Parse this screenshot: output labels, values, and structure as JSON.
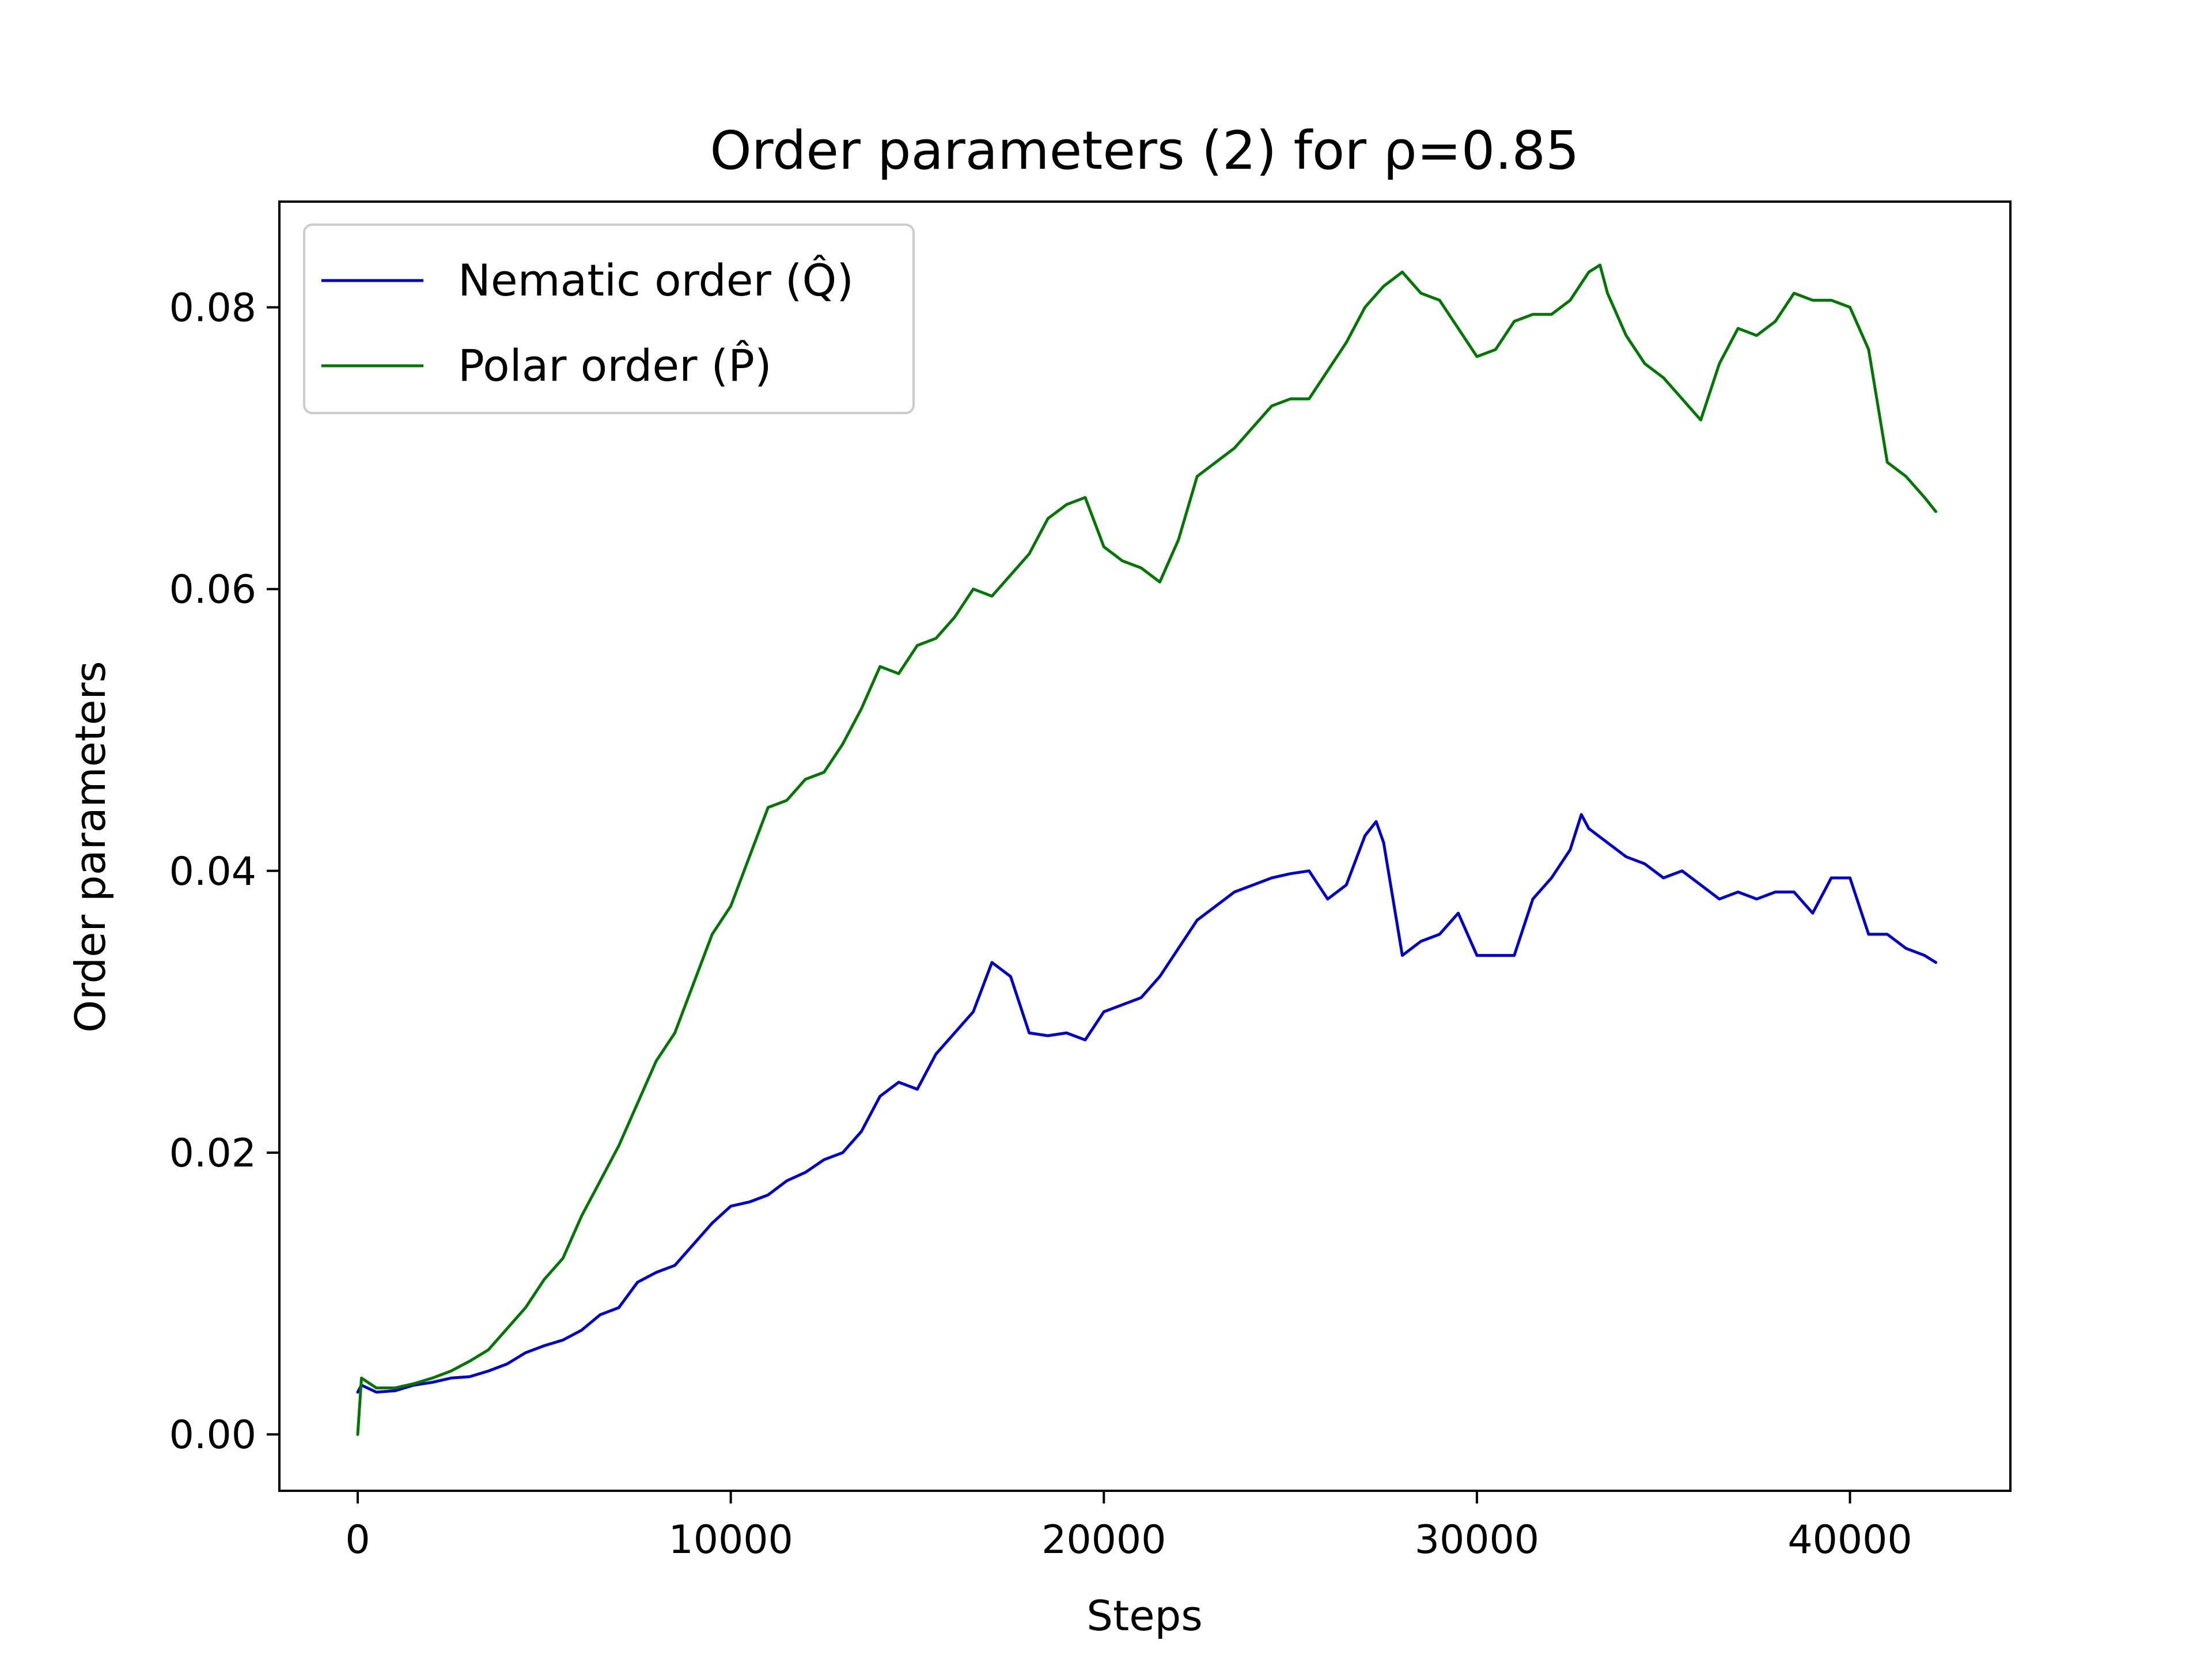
{
  "chart_data": {
    "type": "line",
    "title": "Order parameters (2) for ρ=0.85",
    "xlabel": "Steps",
    "ylabel": "Order parameters",
    "xlim": [
      -2100,
      44300
    ],
    "ylim": [
      -0.004,
      0.0875
    ],
    "xticks": [
      0,
      10000,
      20000,
      30000,
      40000
    ],
    "xtick_labels": [
      "0",
      "10000",
      "20000",
      "30000",
      "40000"
    ],
    "yticks": [
      0.0,
      0.02,
      0.04,
      0.06,
      0.08
    ],
    "ytick_labels": [
      "0.00",
      "0.02",
      "0.04",
      "0.06",
      "0.08"
    ],
    "grid": false,
    "legend_position": "top-left",
    "series": [
      {
        "name": "Nematic order (Q̂)",
        "color": "#0000cc",
        "x": [
          0,
          100,
          500,
          1000,
          1500,
          2000,
          2500,
          3000,
          3500,
          4000,
          4500,
          5000,
          5500,
          6000,
          6500,
          7000,
          7500,
          8000,
          8500,
          9000,
          9500,
          10000,
          10500,
          11000,
          11500,
          12000,
          12500,
          13000,
          13500,
          14000,
          14500,
          15000,
          15500,
          16000,
          16500,
          17000,
          17500,
          18000,
          18500,
          19000,
          19500,
          20000,
          20500,
          21000,
          21500,
          22000,
          22500,
          23000,
          23500,
          24000,
          24500,
          25000,
          25500,
          26000,
          26500,
          27000,
          27300,
          27500,
          28000,
          28500,
          29000,
          29500,
          30000,
          30500,
          31000,
          31500,
          32000,
          32500,
          32800,
          33000,
          33500,
          34000,
          34500,
          35000,
          35500,
          36000,
          36500,
          37000,
          37500,
          38000,
          38500,
          39000,
          39500,
          40000,
          40500,
          41000,
          41500,
          42000,
          42300
        ],
        "values": [
          0.003,
          0.0035,
          0.003,
          0.0031,
          0.0035,
          0.0037,
          0.004,
          0.0041,
          0.0045,
          0.005,
          0.0058,
          0.0063,
          0.0067,
          0.0074,
          0.0085,
          0.009,
          0.0108,
          0.0115,
          0.012,
          0.0135,
          0.015,
          0.0162,
          0.0165,
          0.017,
          0.018,
          0.0186,
          0.0195,
          0.02,
          0.0215,
          0.024,
          0.025,
          0.0245,
          0.027,
          0.0285,
          0.03,
          0.0335,
          0.0325,
          0.0285,
          0.0283,
          0.0285,
          0.028,
          0.03,
          0.0305,
          0.031,
          0.0325,
          0.0345,
          0.0365,
          0.0375,
          0.0385,
          0.039,
          0.0395,
          0.0398,
          0.04,
          0.038,
          0.039,
          0.0425,
          0.0435,
          0.042,
          0.034,
          0.035,
          0.0355,
          0.037,
          0.034,
          0.034,
          0.034,
          0.038,
          0.0395,
          0.0415,
          0.044,
          0.043,
          0.042,
          0.041,
          0.0405,
          0.0395,
          0.04,
          0.039,
          0.038,
          0.0385,
          0.038,
          0.0385,
          0.0385,
          0.037,
          0.0395,
          0.0395,
          0.0355,
          0.0355,
          0.0345,
          0.034,
          0.0335
        ]
      },
      {
        "name": "Polar order (P̂)",
        "color": "#007700",
        "x": [
          0,
          100,
          500,
          1000,
          1500,
          2000,
          2500,
          3000,
          3500,
          4000,
          4500,
          5000,
          5500,
          6000,
          6500,
          7000,
          7500,
          8000,
          8500,
          9000,
          9500,
          10000,
          10500,
          11000,
          11500,
          12000,
          12500,
          13000,
          13500,
          14000,
          14500,
          15000,
          15500,
          16000,
          16500,
          17000,
          17500,
          18000,
          18500,
          19000,
          19500,
          20000,
          20500,
          21000,
          21500,
          22000,
          22500,
          23000,
          23500,
          24000,
          24500,
          25000,
          25500,
          26000,
          26500,
          27000,
          27500,
          28000,
          28500,
          29000,
          29500,
          30000,
          30500,
          31000,
          31500,
          32000,
          32500,
          33000,
          33300,
          33500,
          34000,
          34500,
          35000,
          35500,
          36000,
          36500,
          37000,
          37500,
          38000,
          38500,
          39000,
          39500,
          40000,
          40500,
          41000,
          41500,
          42000,
          42300
        ],
        "values": [
          0.0,
          0.004,
          0.0033,
          0.0033,
          0.0036,
          0.004,
          0.0045,
          0.0052,
          0.006,
          0.0075,
          0.009,
          0.011,
          0.0125,
          0.0155,
          0.018,
          0.0205,
          0.0235,
          0.0265,
          0.0285,
          0.032,
          0.0355,
          0.0375,
          0.041,
          0.0445,
          0.045,
          0.0465,
          0.047,
          0.049,
          0.0515,
          0.0545,
          0.054,
          0.056,
          0.0565,
          0.058,
          0.06,
          0.0595,
          0.061,
          0.0625,
          0.065,
          0.066,
          0.0665,
          0.063,
          0.062,
          0.0615,
          0.0605,
          0.0635,
          0.068,
          0.069,
          0.07,
          0.0715,
          0.073,
          0.0735,
          0.0735,
          0.0755,
          0.0775,
          0.08,
          0.0815,
          0.0825,
          0.081,
          0.0805,
          0.0785,
          0.0765,
          0.077,
          0.079,
          0.0795,
          0.0795,
          0.0805,
          0.0825,
          0.083,
          0.081,
          0.078,
          0.076,
          0.075,
          0.0735,
          0.072,
          0.076,
          0.0785,
          0.078,
          0.079,
          0.081,
          0.0805,
          0.0805,
          0.08,
          0.077,
          0.069,
          0.068,
          0.0665,
          0.0655
        ]
      }
    ]
  }
}
